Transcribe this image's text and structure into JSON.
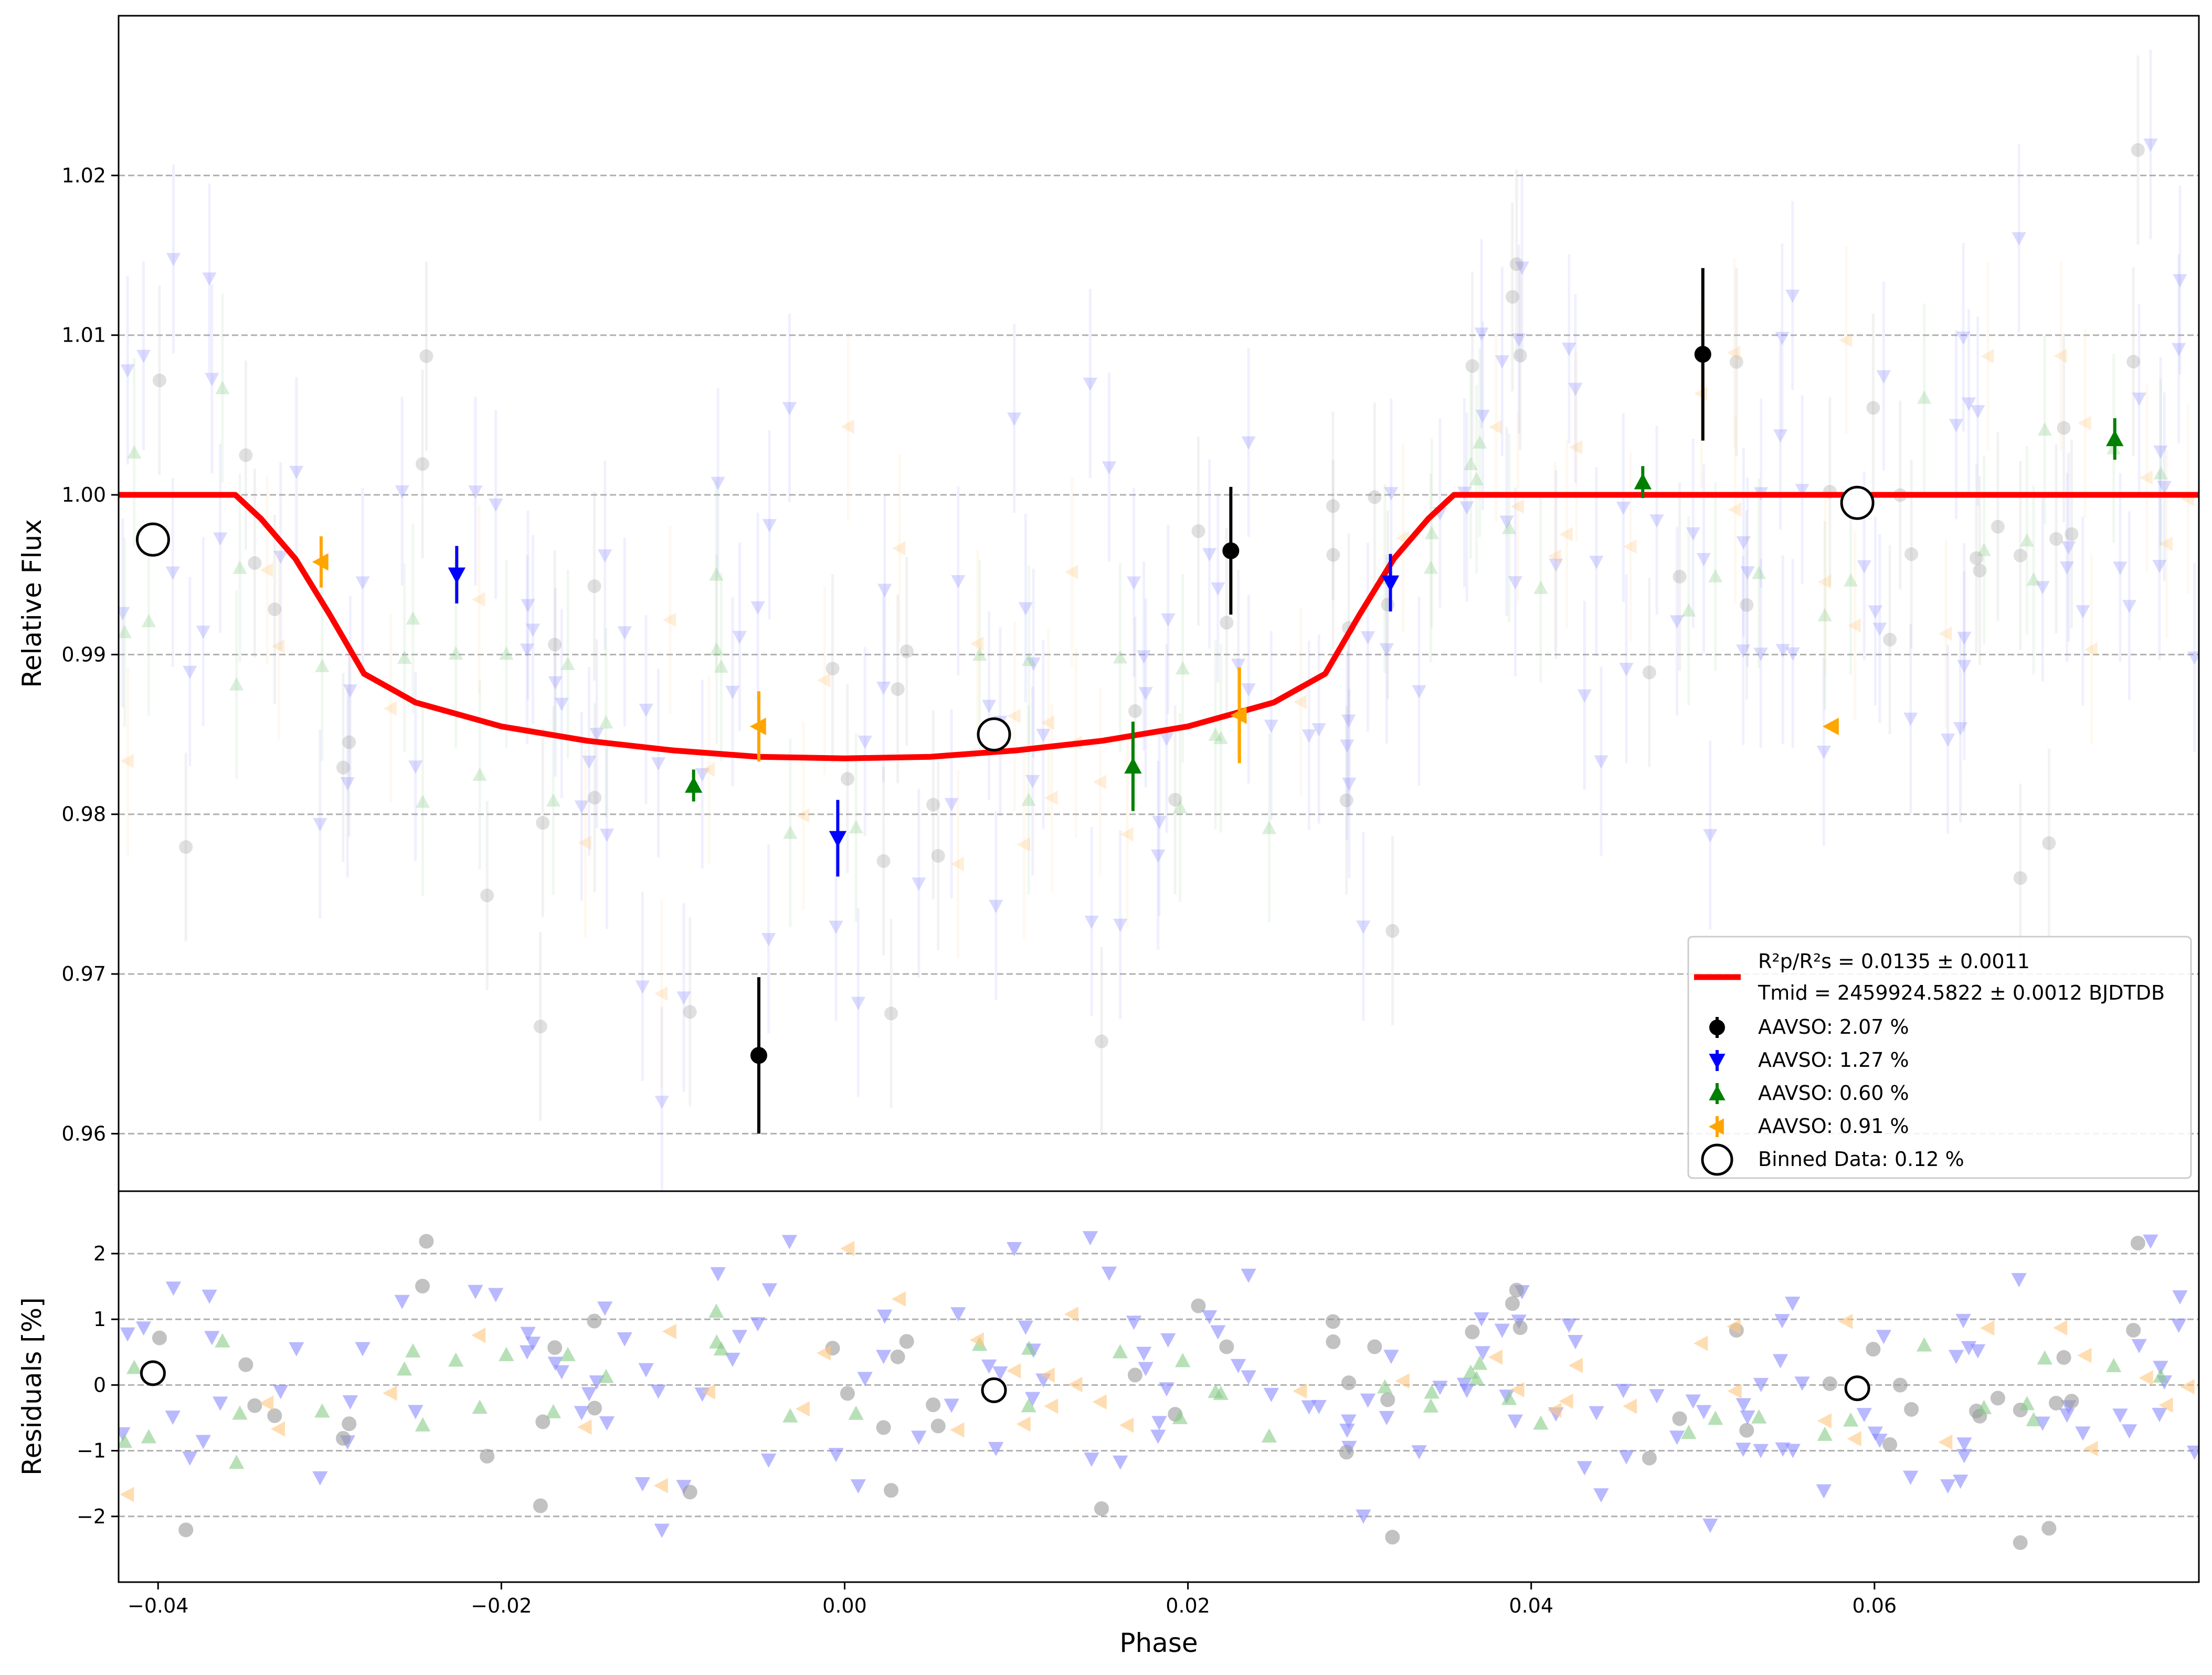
{
  "chart_data": [
    {
      "panel": "light-curve",
      "type": "scatter",
      "xlabel": "",
      "ylabel": "Relative Flux",
      "xlim": [
        -0.0423,
        0.0789
      ],
      "ylim": [
        0.9564,
        1.03
      ],
      "yticks": [
        0.96,
        0.97,
        0.98,
        0.99,
        1.0,
        1.01,
        1.02
      ],
      "ytick_labels": [
        "0.96",
        "0.97",
        "0.98",
        "0.99",
        "1.00",
        "1.01",
        "1.02"
      ],
      "grid": "horizontal dashed",
      "legend_position": "lower-right",
      "model": {
        "name_line1": "R²p/R²s = 0.0135 ± 0.0011",
        "name_line2": "Tmid = 2459924.5822 ± 0.0012 BJDTDB",
        "color": "#ff0000",
        "x": [
          -0.0423,
          -0.0355,
          -0.034,
          -0.032,
          -0.03,
          -0.028,
          -0.025,
          -0.02,
          -0.015,
          -0.01,
          -0.005,
          0.0,
          0.005,
          0.01,
          0.015,
          0.02,
          0.025,
          0.028,
          0.03,
          0.032,
          0.034,
          0.0355,
          0.0789
        ],
        "y": [
          1.0,
          1.0,
          0.9985,
          0.996,
          0.9925,
          0.9888,
          0.987,
          0.9855,
          0.9846,
          0.984,
          0.9836,
          0.9835,
          0.9836,
          0.984,
          0.9846,
          0.9855,
          0.987,
          0.9888,
          0.9925,
          0.996,
          0.9985,
          1.0,
          1.0
        ]
      },
      "series": [
        {
          "name": "AAVSO: 2.07 %",
          "marker": "circle",
          "color": "#000000",
          "x": [
            -0.005,
            0.0225,
            0.05
          ],
          "y": [
            0.9649,
            0.9965,
            1.0088
          ],
          "err": [
            0.0049,
            0.004,
            0.0054
          ]
        },
        {
          "name": "AAVSO: 1.27 %",
          "marker": "triangle-down",
          "color": "#0000ff",
          "x": [
            -0.0226,
            -0.0004,
            0.0318
          ],
          "y": [
            0.995,
            0.9785,
            0.9945
          ],
          "err": [
            0.0018,
            0.0024,
            0.0018
          ]
        },
        {
          "name": "AAVSO: 0.60 %",
          "marker": "triangle-up",
          "color": "#008000",
          "x": [
            -0.0088,
            0.0168,
            0.0465,
            0.074
          ],
          "y": [
            0.9818,
            0.983,
            1.0008,
            1.0035
          ],
          "err": [
            0.001,
            0.0028,
            0.001,
            0.0013
          ]
        },
        {
          "name": "AAVSO: 0.91 %",
          "marker": "triangle-left",
          "color": "#ffa500",
          "x": [
            -0.0305,
            -0.005,
            0.023,
            0.0575
          ],
          "y": [
            0.9958,
            0.9855,
            0.9862,
            0.9855
          ],
          "err": [
            0.0016,
            0.0022,
            0.003,
            0.0002
          ]
        },
        {
          "name": "Binned Data: 0.12 %",
          "marker": "open-circle",
          "color": "#000000",
          "x": [
            -0.0403,
            0.0087,
            0.059
          ],
          "y": [
            0.9972,
            0.985,
            0.9995
          ],
          "err": [
            0.001,
            0.001,
            0.001
          ]
        }
      ]
    },
    {
      "panel": "residuals",
      "type": "scatter",
      "xlabel": "Phase",
      "ylabel": "Residuals [%]",
      "xlim": [
        -0.0423,
        0.0789
      ],
      "ylim": [
        -3.0,
        2.95
      ],
      "xticks": [
        -0.04,
        -0.02,
        0.0,
        0.02,
        0.04,
        0.06
      ],
      "xtick_labels": [
        "−0.04",
        "−0.02",
        "0.00",
        "0.02",
        "0.04",
        "0.06"
      ],
      "yticks": [
        -2,
        -1,
        0,
        1,
        2
      ],
      "ytick_labels": [
        "−2",
        "−1",
        "0",
        "1",
        "2"
      ],
      "grid": "horizontal dashed",
      "binned_residuals": {
        "x": [
          -0.0403,
          0.0087,
          0.059
        ],
        "y": [
          0.18,
          -0.08,
          -0.05
        ]
      }
    }
  ]
}
